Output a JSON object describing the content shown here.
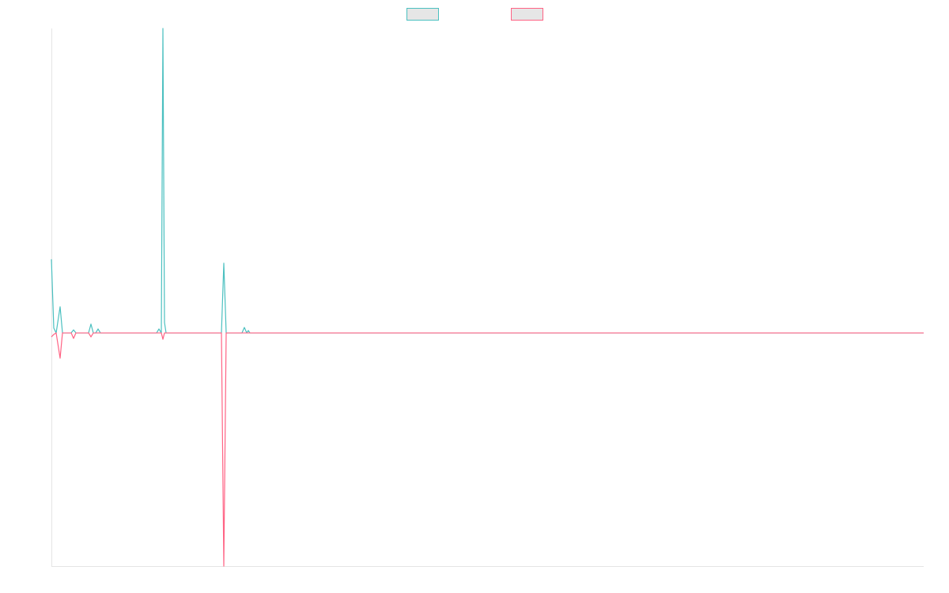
{
  "chart_data": {
    "type": "line",
    "x": [
      0,
      3,
      6,
      11,
      14,
      25,
      28,
      31,
      47,
      50,
      53,
      56,
      59,
      62,
      133,
      136,
      139,
      141,
      143,
      145,
      147,
      215,
      218,
      221,
      241,
      244,
      247,
      249,
      251,
      1103
    ],
    "xlim": [
      0,
      1103
    ],
    "ylim": [
      -766,
      1000
    ],
    "series": [
      {
        "color": "#4bc0c0",
        "values": [
          242,
          16,
          0,
          86,
          0,
          0,
          10,
          0,
          0,
          29,
          0,
          0,
          13,
          0,
          0,
          13,
          0,
          1000,
          34,
          0,
          0,
          0,
          229,
          0,
          0,
          18,
          0,
          8,
          0,
          0
        ]
      },
      {
        "color": "#ff6384",
        "values": [
          -13,
          -5,
          0,
          -83,
          0,
          0,
          -18,
          0,
          0,
          -13,
          0,
          0,
          0,
          0,
          0,
          0,
          0,
          -21,
          0,
          0,
          0,
          0,
          -766,
          0,
          0,
          0,
          0,
          0,
          0,
          0
        ]
      }
    ]
  }
}
